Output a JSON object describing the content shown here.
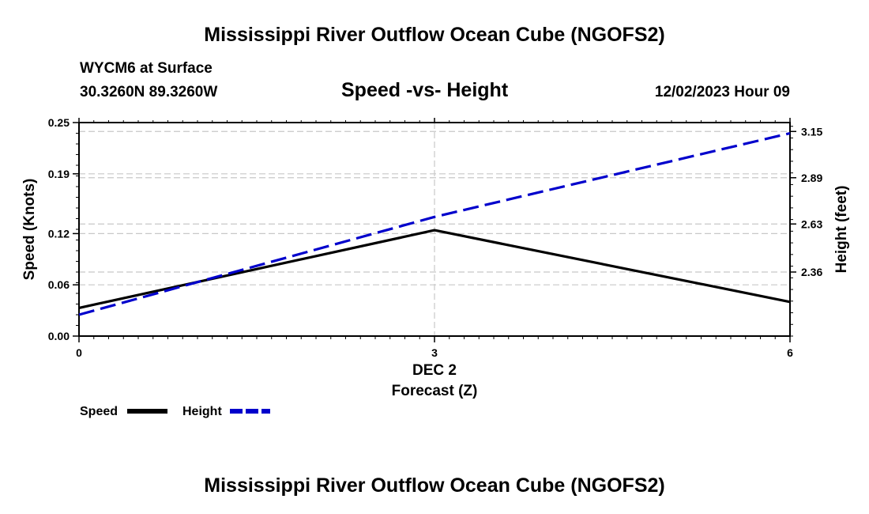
{
  "header": {
    "title": "Mississippi River Outflow Ocean Cube (NGOFS2)",
    "station": "WYCM6 at Surface",
    "coords": "30.3260N  89.3260W",
    "datetime": "12/02/2023 Hour 09",
    "footer_title": "Mississippi River Outflow Ocean Cube (NGOFS2)"
  },
  "chart_data": {
    "type": "line",
    "title": "Speed -vs- Height",
    "xlabel": "Forecast (Z)",
    "xdate_label": "DEC 2",
    "ylabel": "Speed (Knots)",
    "y2label": "Height (feet)",
    "x": [
      0,
      3,
      6
    ],
    "x_ticks": [
      "0",
      "3",
      "6"
    ],
    "xlim": [
      0,
      6
    ],
    "ylim": [
      0,
      0.25
    ],
    "y_ticks": [
      "0.00",
      "0.06",
      "0.12",
      "0.19",
      "0.25"
    ],
    "y2lim": [
      2.0,
      3.2
    ],
    "y2_ticks": [
      "2.36",
      "2.63",
      "2.89",
      "3.15"
    ],
    "series": [
      {
        "name": "Speed",
        "axis": "left",
        "color": "#000000",
        "style": "solid",
        "values": [
          0.033,
          0.124,
          0.04
        ]
      },
      {
        "name": "Height",
        "axis": "right",
        "color": "#0000cc",
        "style": "dashed",
        "values": [
          2.12,
          2.67,
          3.14
        ]
      }
    ],
    "legend": [
      "Speed",
      "Height"
    ],
    "grid": true
  }
}
